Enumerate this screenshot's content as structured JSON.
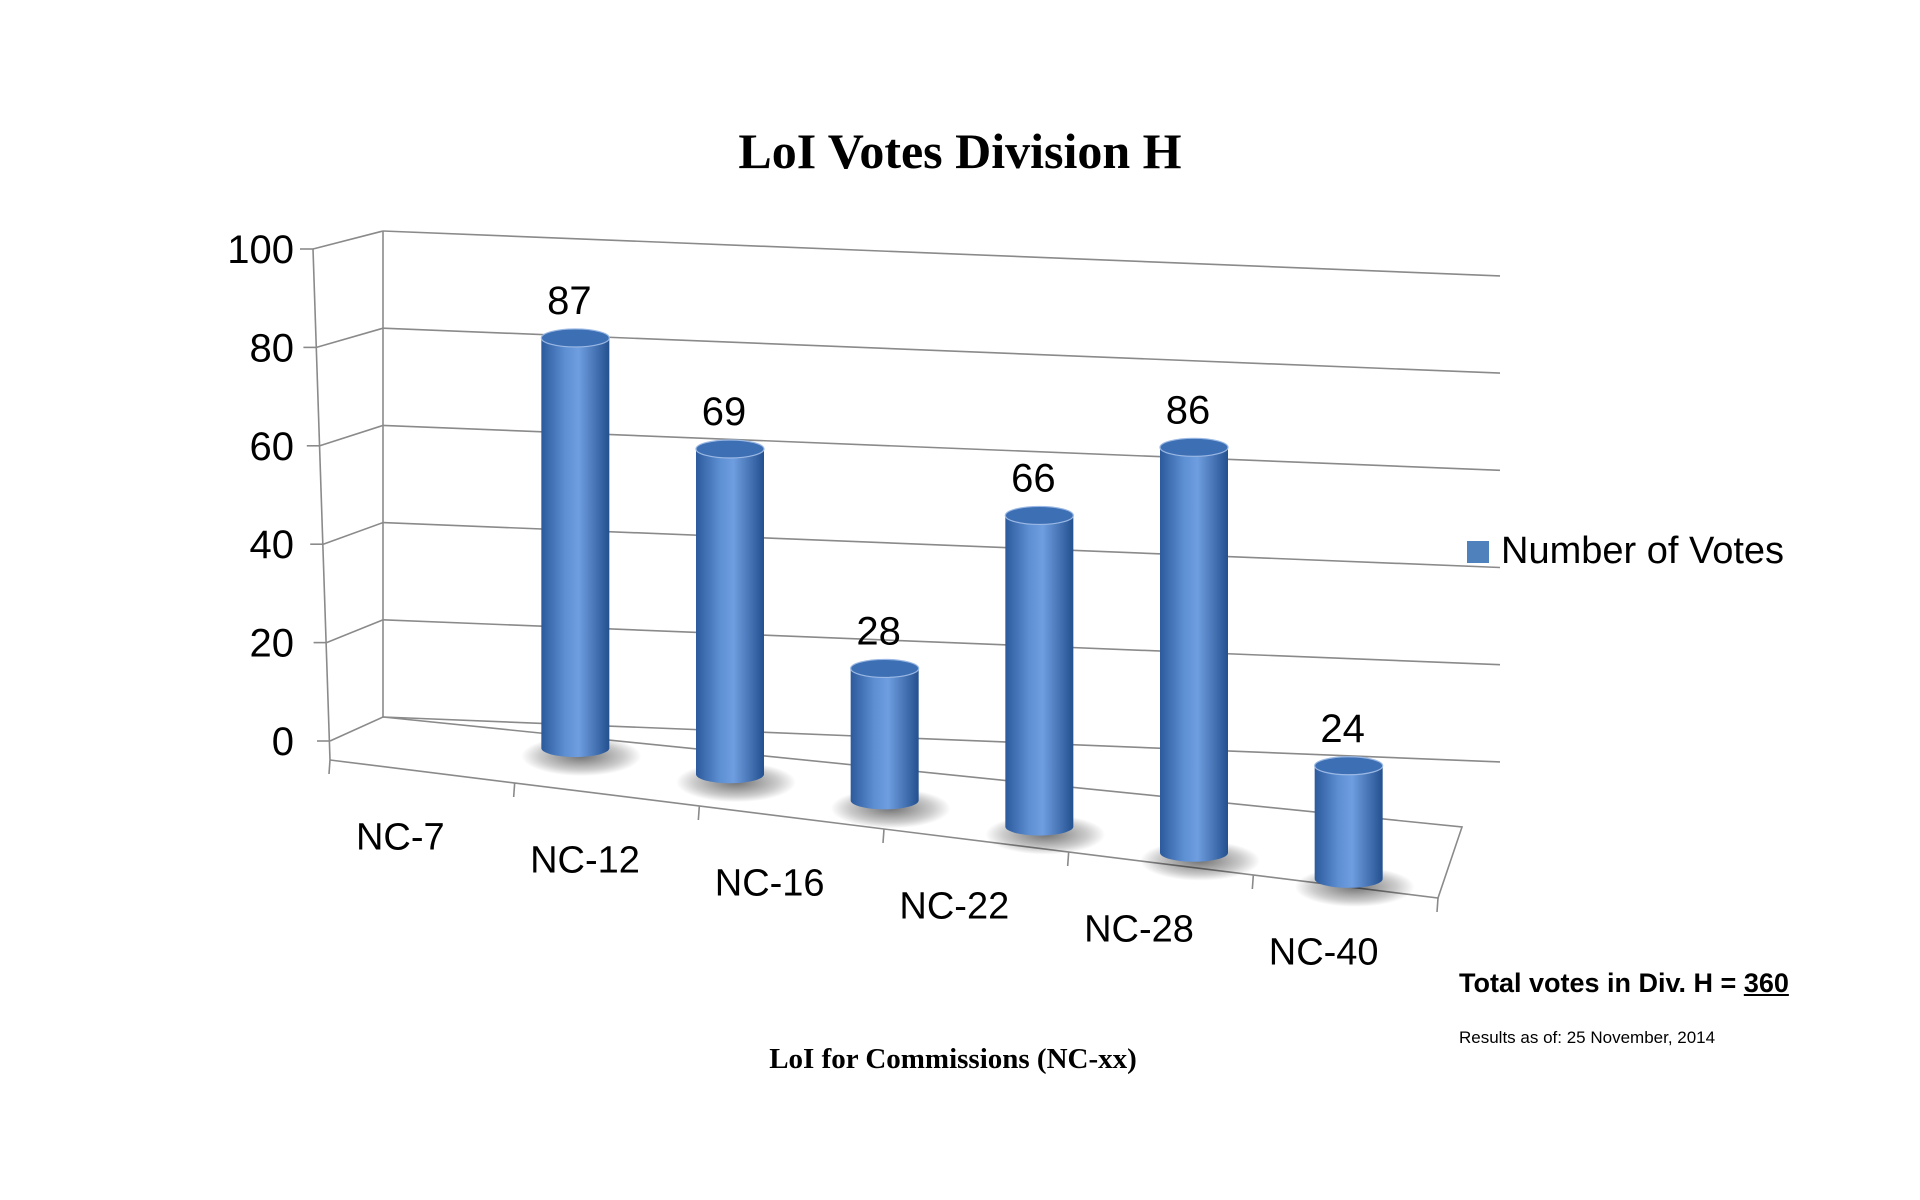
{
  "chart_data": {
    "type": "bar",
    "title": "LoI Votes Division H",
    "xlabel": "LoI for Commissions (NC-xx)",
    "ylabel": "",
    "categories": [
      "NC-7",
      "NC-12",
      "NC-16",
      "NC-22",
      "NC-28",
      "NC-40"
    ],
    "series": [
      {
        "name": "Number of Votes",
        "values": [
          87,
          69,
          28,
          66,
          86,
          24
        ]
      }
    ],
    "ylim": [
      0,
      100
    ],
    "yticks": [
      "0",
      "20",
      "40",
      "60",
      "80",
      "100"
    ],
    "grid": true,
    "legend": "right",
    "style": "3d-cylinder"
  },
  "colors": {
    "bar": "#4f81bd",
    "bar_dark": "#2b5797",
    "bar_light": "#7ea6dd"
  },
  "notes": {
    "total_label": "Total votes in Div. H = ",
    "total_value": "360",
    "date_label": "Results as of: 25 November, 2014"
  }
}
